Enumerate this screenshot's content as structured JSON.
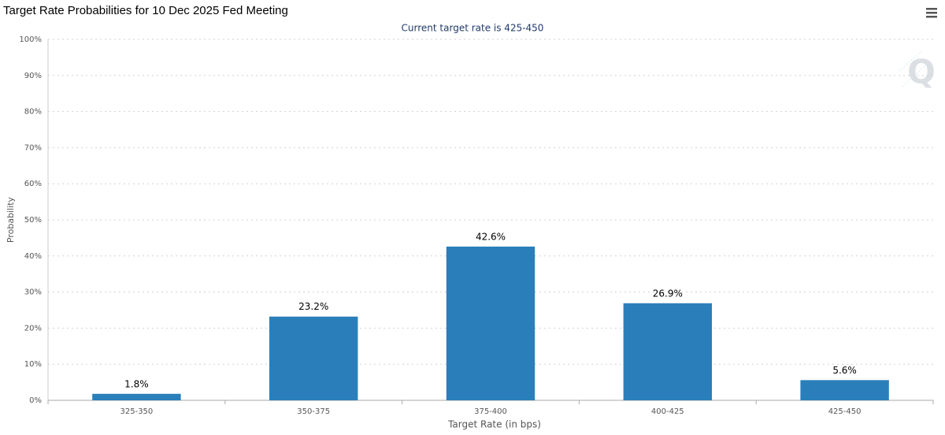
{
  "chart_data": {
    "type": "bar",
    "title": "Target Rate Probabilities for 10 Dec 2025 Fed Meeting",
    "subtitle": "Current target rate is 425-450",
    "x_label": "Target Rate (in bps)",
    "y_label": "Probability",
    "categories": [
      "325-350",
      "350-375",
      "375-400",
      "400-425",
      "425-450"
    ],
    "values": [
      1.8,
      23.2,
      42.6,
      26.9,
      5.6
    ],
    "value_labels": [
      "1.8%",
      "23.2%",
      "42.6%",
      "26.9%",
      "5.6%"
    ],
    "color": "#2a7fba",
    "ylim": [
      0,
      100
    ],
    "yticks": [
      {
        "value": 0,
        "label": "0%"
      },
      {
        "value": 10,
        "label": "10%"
      },
      {
        "value": 20,
        "label": "20%"
      },
      {
        "value": 30,
        "label": "30%"
      },
      {
        "value": 40,
        "label": "40%"
      },
      {
        "value": 50,
        "label": "50%"
      },
      {
        "value": 60,
        "label": "60%"
      },
      {
        "value": 70,
        "label": "70%"
      },
      {
        "value": 80,
        "label": "80%"
      },
      {
        "value": 90,
        "label": "90%"
      },
      {
        "value": 100,
        "label": "100%"
      }
    ],
    "grid": true
  }
}
